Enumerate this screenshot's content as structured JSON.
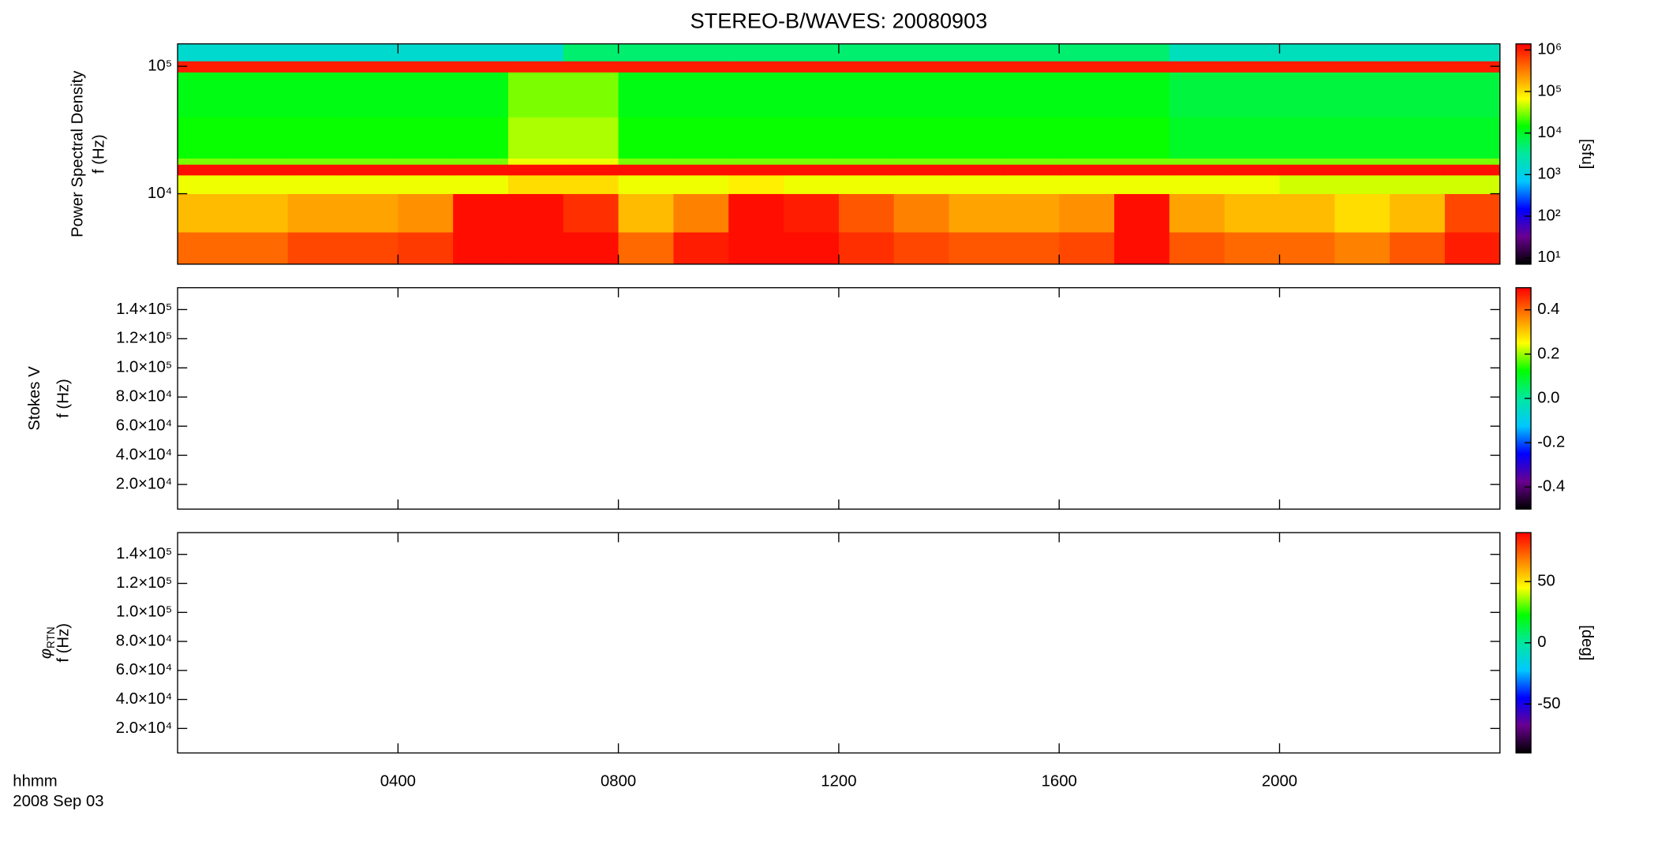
{
  "chart_data": [
    {
      "type": "heatmap",
      "title": "STEREO-B/WAVES: 20080903",
      "ylabel": "Power Spectral Density",
      "ylabel2": "f (Hz)",
      "ylim": [
        2800,
        150000
      ],
      "ylog": true,
      "yticks": [
        {
          "value": 10000,
          "label": "10⁴"
        },
        {
          "value": 100000,
          "label": "10⁵"
        }
      ],
      "x": [
        0,
        1,
        2,
        3,
        4,
        5,
        6,
        7,
        8,
        9,
        10,
        11,
        12,
        13,
        14,
        15,
        16,
        17,
        18,
        19,
        20,
        21,
        22,
        23,
        24
      ],
      "y": [
        2800,
        5000,
        10000,
        14000,
        17000,
        19000,
        40000,
        90000,
        110000,
        150000
      ],
      "z": [
        [
          400000,
          400000,
          600000,
          600000,
          700000,
          1200000,
          1200000,
          1200000,
          400000,
          1000000,
          1200000,
          1200000,
          800000,
          600000,
          500000,
          500000,
          600000,
          1200000,
          500000,
          400000,
          400000,
          300000,
          500000,
          1000000
        ],
        [
          150000,
          150000,
          200000,
          200000,
          250000,
          1200000,
          1200000,
          800000,
          150000,
          300000,
          1200000,
          1000000,
          500000,
          300000,
          200000,
          200000,
          250000,
          1200000,
          200000,
          150000,
          150000,
          100000,
          150000,
          600000
        ],
        [
          60000,
          60000,
          60000,
          60000,
          60000,
          60000,
          100000,
          100000,
          60000,
          60000,
          80000,
          60000,
          60000,
          60000,
          60000,
          60000,
          60000,
          60000,
          60000,
          60000,
          50000,
          50000,
          50000,
          50000
        ],
        [
          1200000,
          1200000,
          1200000,
          1200000,
          1200000,
          1200000,
          1200000,
          1200000,
          1200000,
          1200000,
          1200000,
          1200000,
          1200000,
          1200000,
          1200000,
          1200000,
          1200000,
          1200000,
          1200000,
          1200000,
          1200000,
          1200000,
          1200000,
          1200000
        ],
        [
          30000,
          30000,
          30000,
          30000,
          30000,
          30000,
          60000,
          60000,
          30000,
          30000,
          30000,
          30000,
          30000,
          30000,
          30000,
          30000,
          30000,
          30000,
          30000,
          30000,
          30000,
          30000,
          30000,
          30000
        ],
        [
          15000,
          15000,
          15000,
          15000,
          15000,
          15000,
          40000,
          40000,
          15000,
          15000,
          15000,
          15000,
          15000,
          15000,
          15000,
          15000,
          15000,
          15000,
          10000,
          10000,
          10000,
          10000,
          10000,
          10000
        ],
        [
          12000,
          12000,
          12000,
          12000,
          12000,
          12000,
          30000,
          30000,
          12000,
          12000,
          12000,
          12000,
          12000,
          12000,
          12000,
          12000,
          12000,
          12000,
          8000,
          8000,
          8000,
          8000,
          8000,
          8000
        ],
        [
          1000000,
          1000000,
          1000000,
          1000000,
          1000000,
          1000000,
          1000000,
          1000000,
          1000000,
          1000000,
          1000000,
          1000000,
          1000000,
          1000000,
          1000000,
          1000000,
          1000000,
          1000000,
          1000000,
          1000000,
          1000000,
          1000000,
          1000000,
          1000000
        ],
        [
          1500,
          1500,
          1500,
          1500,
          1500,
          1500,
          1500,
          5000,
          5000,
          5000,
          5000,
          5000,
          5000,
          5000,
          5000,
          5000,
          5000,
          5000,
          2000,
          2000,
          2000,
          2000,
          2000,
          2000
        ]
      ],
      "colorbar": {
        "zlim": [
          7,
          1400000
        ],
        "zlog": true,
        "label": "[sfu]",
        "ticks": [
          {
            "value": 10,
            "label": "10¹"
          },
          {
            "value": 100,
            "label": "10²"
          },
          {
            "value": 1000,
            "label": "10³"
          },
          {
            "value": 10000,
            "label": "10⁴"
          },
          {
            "value": 100000,
            "label": "10⁵"
          },
          {
            "value": 1000000,
            "label": "10⁶"
          }
        ],
        "colormap": [
          "#000000",
          "#6a0090",
          "#0000ff",
          "#00c8ff",
          "#00e8a0",
          "#00ff00",
          "#ffff00",
          "#ff8000",
          "#ff0000"
        ]
      }
    },
    {
      "type": "heatmap",
      "ylabel": "Stokes V",
      "ylabel2": "f (Hz)",
      "ylim": [
        3100,
        155000
      ],
      "ylog": false,
      "yticks": [
        {
          "value": 20000,
          "label": "2.0×10⁴"
        },
        {
          "value": 40000,
          "label": "4.0×10⁴"
        },
        {
          "value": 60000,
          "label": "6.0×10⁴"
        },
        {
          "value": 80000,
          "label": "8.0×10⁴"
        },
        {
          "value": 100000,
          "label": "1.0×10⁵"
        },
        {
          "value": 120000,
          "label": "1.2×10⁵"
        },
        {
          "value": 140000,
          "label": "1.4×10⁵"
        }
      ],
      "colorbar": {
        "zlim": [
          -0.5,
          0.5
        ],
        "zlog": false,
        "ticks": [
          -0.4,
          -0.2,
          {
            "value": 0,
            "label": "0.0"
          },
          0.2,
          0.4
        ],
        "colormap": [
          "#000000",
          "#6a0090",
          "#0000ff",
          "#00c8ff",
          "#00e8a0",
          "#00ff00",
          "#ffff00",
          "#ff8000",
          "#ff0000"
        ]
      }
    },
    {
      "type": "heatmap",
      "ylabel": "φ",
      "ylabel_sub": "RTN",
      "ylabel2": "f (Hz)",
      "ylim": [
        3100,
        155000
      ],
      "ylog": false,
      "yticks": [
        {
          "value": 20000,
          "label": "2.0×10⁴"
        },
        {
          "value": 40000,
          "label": "4.0×10⁴"
        },
        {
          "value": 60000,
          "label": "6.0×10⁴"
        },
        {
          "value": 80000,
          "label": "8.0×10⁴"
        },
        {
          "value": 100000,
          "label": "1.0×10⁵"
        },
        {
          "value": 120000,
          "label": "1.2×10⁵"
        },
        {
          "value": 140000,
          "label": "1.4×10⁵"
        }
      ],
      "xlim": [
        0,
        24
      ],
      "xticks": [
        {
          "value": 4,
          "label": "0400"
        },
        {
          "value": 8,
          "label": "0800"
        },
        {
          "value": 12,
          "label": "1200"
        },
        {
          "value": 16,
          "label": "1600"
        },
        {
          "value": 20,
          "label": "2000"
        }
      ],
      "xlabel": "hhmm",
      "xlabel_date": "2008 Sep 03",
      "colorbar": {
        "zlim": [
          -90,
          90
        ],
        "zlog": false,
        "label": "[deg]",
        "ticks": [
          -50,
          0,
          50
        ],
        "colormap": [
          "#000000",
          "#6a0090",
          "#0000ff",
          "#00c8ff",
          "#00e8a0",
          "#00ff00",
          "#ffff00",
          "#ff8000",
          "#ff0000"
        ]
      }
    }
  ]
}
